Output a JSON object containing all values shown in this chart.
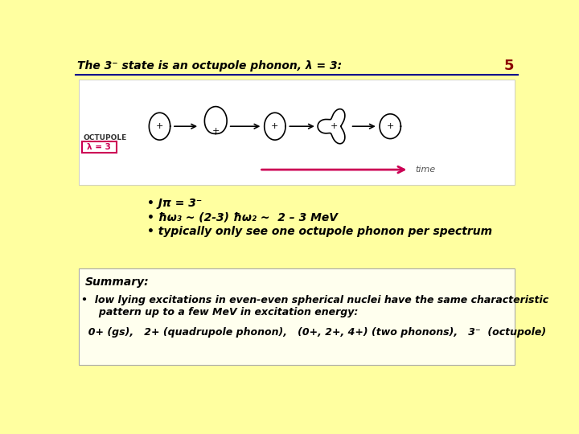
{
  "bg_color": "#ffffa0",
  "title_text": "The 3⁻ state is an octupole phonon, λ = 3:",
  "page_num": "5",
  "title_color": "#000000",
  "title_line_color": "#00008B",
  "image_box_bg": "#ffffff",
  "octupole_label": "OCTUPOLE",
  "lambda_label": "λ = 3",
  "time_label": "time",
  "arrow_color": "#cc0055",
  "summary_box_bg": "#fffff0",
  "font_color_main": "#000000",
  "bullet1": "Jπ = 3⁻",
  "bullet3": "typically only see one octupole phonon per spectrum",
  "summary_title": "Summary:",
  "summary_line1": "•  low lying excitations in even-even spherical nuclei have the same characteristic",
  "summary_line1b": "     pattern up to a few MeV in excitation energy:",
  "summary_line2": "  0+ (gs),   2+ (quadrupole phonon),   (0+, 2+, 4+) (two phonons),   3⁻  (octupole)"
}
